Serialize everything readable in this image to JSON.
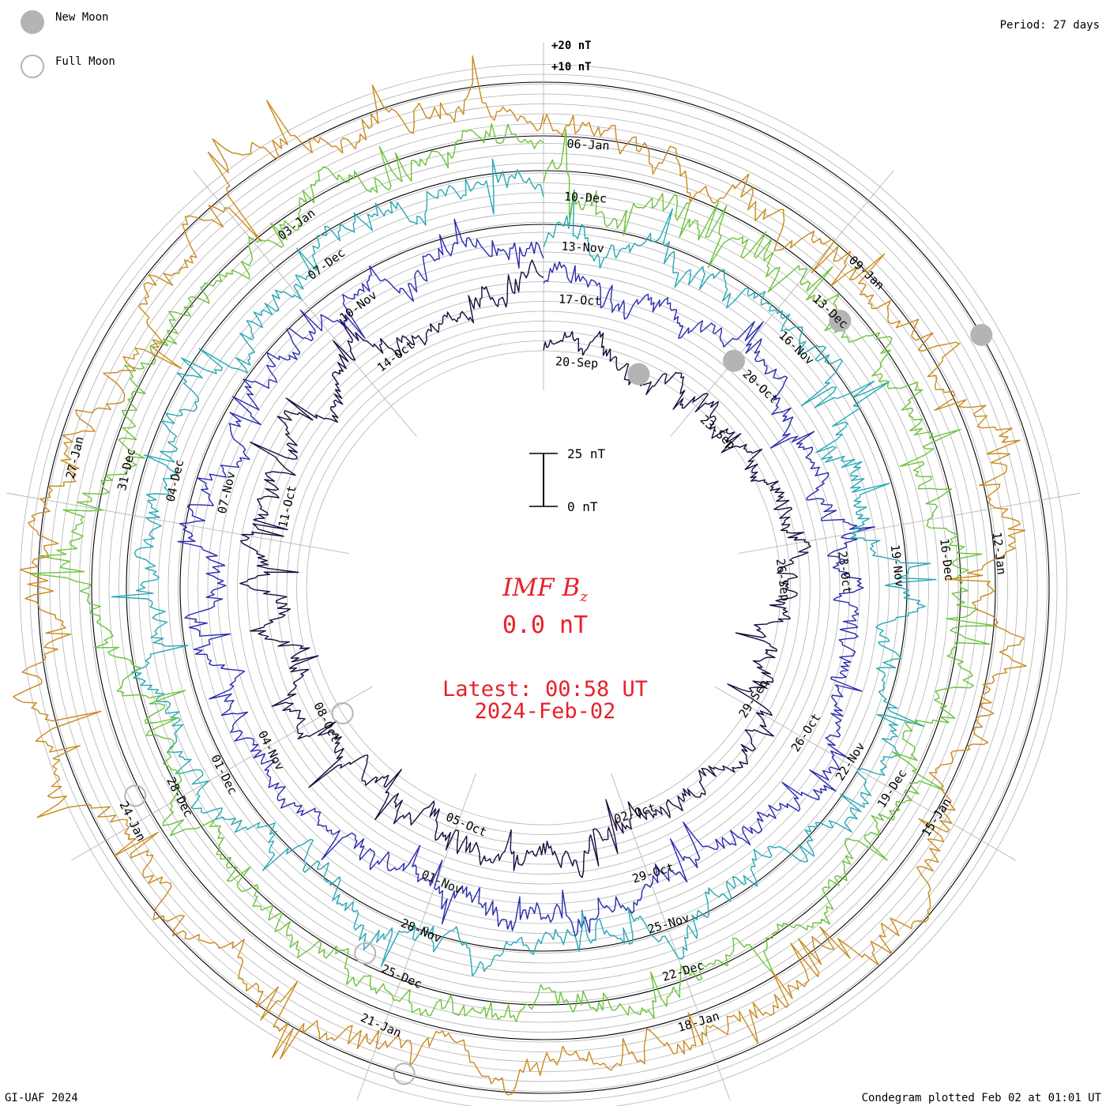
{
  "legend": {
    "new_moon": "New Moon",
    "full_moon": "Full Moon"
  },
  "period_label": "Period: 27 days",
  "footer_left": "GI-UAF 2024",
  "footer_right": "Condegram plotted Feb 02 at 01:01 UT",
  "center": {
    "quantity": "IMF B",
    "quantity_subscript": "z",
    "current_value": "0.0 nT",
    "latest_time": "Latest: 00:58 UT",
    "latest_date": "2024-Feb-02"
  },
  "colors": {
    "accent_red": "#e8202a",
    "grid": "#b0b0b0",
    "new_moon": "#b4b4b4",
    "full_moon": "#b4b4b4"
  },
  "chart_data": {
    "type": "line",
    "layout": "spiral condegram (polar, clockwise, 27-day rotations)",
    "period_days": 27,
    "unit": "nT",
    "scale_bar": {
      "low_label": "0 nT",
      "high_label": "25 nT"
    },
    "ring_labels": [
      "+20 nT",
      "+10 nT"
    ],
    "rotations": [
      {
        "name": "rotation 1 (Sep–Oct)",
        "color": "#1a0a3e",
        "date_labels": [
          "20-Sep",
          "23-Sep",
          "26-Sep",
          "29-Sep",
          "02-Oct",
          "05-Oct",
          "08-Oct",
          "11-Oct",
          "14-Oct"
        ]
      },
      {
        "name": "rotation 2 (Oct–Nov)",
        "color": "#2a2ab0",
        "date_labels": [
          "17-Oct",
          "20-Oct",
          "23-Oct",
          "26-Oct",
          "29-Oct",
          "01-Nov",
          "04-Nov",
          "07-Nov",
          "10-Nov"
        ]
      },
      {
        "name": "rotation 3 (Nov–Dec)",
        "color": "#27a8b5",
        "date_labels": [
          "13-Nov",
          "16-Nov",
          "19-Nov",
          "22-Nov",
          "25-Nov",
          "28-Nov",
          "01-Dec",
          "04-Dec",
          "07-Dec"
        ]
      },
      {
        "name": "rotation 4 (Dec)",
        "color": "#6cc23a",
        "date_labels": [
          "10-Dec",
          "13-Dec",
          "16-Dec",
          "19-Dec",
          "22-Dec",
          "25-Dec",
          "28-Dec",
          "31-Dec",
          "03-Jan"
        ]
      },
      {
        "name": "rotation 5 (Jan)",
        "color": "#c98a1c",
        "date_labels": [
          "06-Jan",
          "09-Jan",
          "12-Jan",
          "15-Jan",
          "18-Jan",
          "21-Jan",
          "24-Jan",
          "27-Jan"
        ]
      }
    ],
    "new_moon_days": [
      "14-Oct",
      "13-Nov",
      "12-Dec",
      "11-Jan"
    ],
    "full_moon_days": [
      "28-Oct",
      "27-Nov",
      "26-Dec",
      "25-Jan"
    ],
    "latest_value_nT": 0.0
  }
}
